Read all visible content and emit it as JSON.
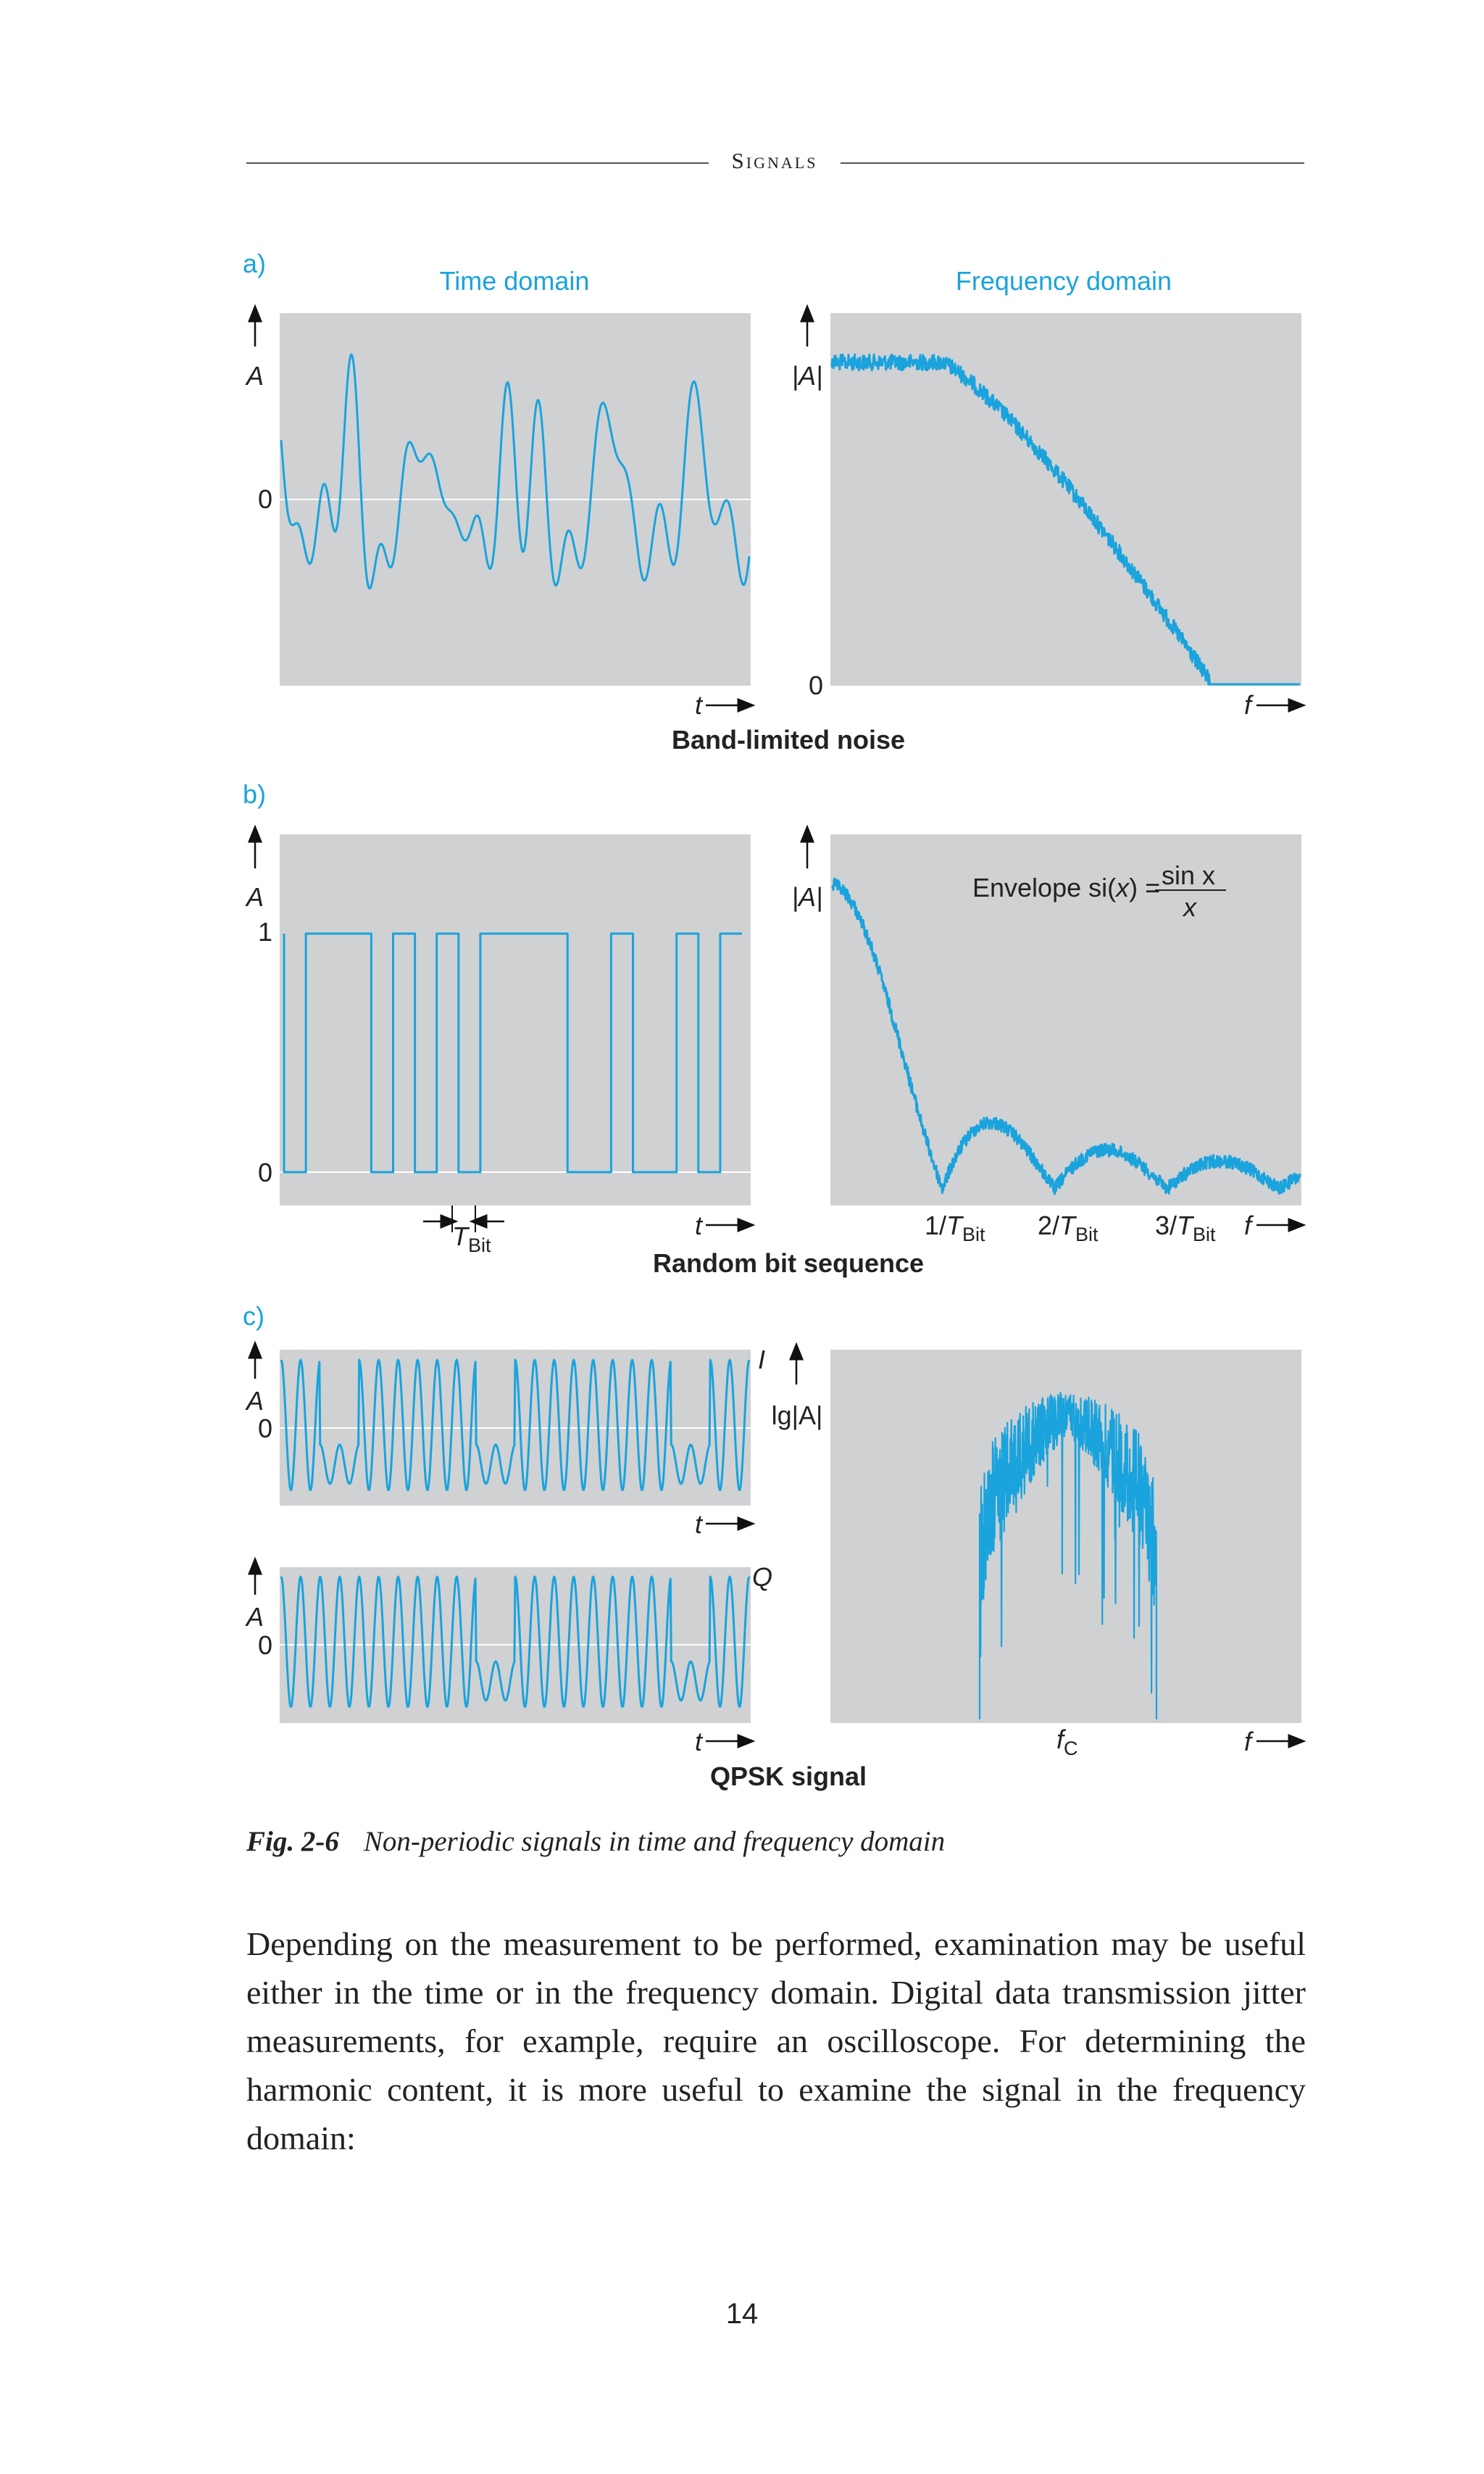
{
  "header": {
    "running_title": "Signals"
  },
  "figure": {
    "panel_a": {
      "letter": "a)",
      "time_domain_heading": "Time domain",
      "frequency_domain_heading": "Frequency domain",
      "time_y_label": "A",
      "freq_y_label": "|A|",
      "time_zero": "0",
      "freq_zero": "0",
      "time_x_label": "t",
      "freq_x_label": "f",
      "title": "Band-limited noise"
    },
    "panel_b": {
      "letter": "b)",
      "time_y_label": "A",
      "freq_y_label": "|A|",
      "time_one": "1",
      "time_zero": "0",
      "time_x_label": "t",
      "freq_x_label": "f",
      "tbit_label_main": "T",
      "tbit_label_sub": "Bit",
      "envelope_prefix": "Envelope  si(",
      "envelope_var": "x",
      "envelope_suffix": ") =",
      "envelope_numerator": "sin x",
      "envelope_denominator": "x",
      "freq_ticks": [
        {
          "prefix": "1/",
          "main": "T",
          "sub": "Bit"
        },
        {
          "prefix": "2/",
          "main": "T",
          "sub": "Bit"
        },
        {
          "prefix": "3/",
          "main": "T",
          "sub": "Bit"
        }
      ],
      "title": "Random bit sequence"
    },
    "panel_c": {
      "letter": "c)",
      "i_label": "I",
      "q_label": "Q",
      "time_y_label": "A",
      "time_zero": "0",
      "time_x_label": "t",
      "freq_y_label": "lg|A|",
      "freq_x_label": "f",
      "carrier_label_main": "f",
      "carrier_label_sub": "C",
      "title": "QPSK signal"
    }
  },
  "caption": {
    "figure_number": "Fig. 2-6",
    "text": "Non-periodic signals in time and frequency domain"
  },
  "body_text": "Depending on the measurement to be performed, examination may be useful either in the time or in the frequency domain. Digital data transmission jitter measurements, for example, require an oscilloscope. For determining the harmonic content, it is more useful to examine the signal in the frequency domain:",
  "page_number": "14",
  "colors": {
    "accent": "#1aa3dc",
    "plot_background": "#d0d1d3",
    "text": "#222222"
  }
}
